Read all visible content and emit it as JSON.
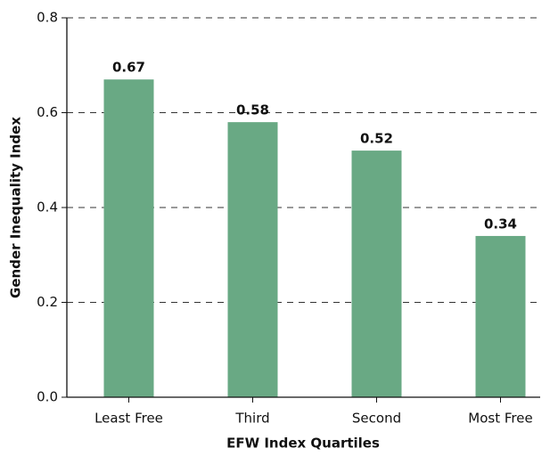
{
  "chart_data": {
    "type": "bar",
    "x_label": "EFW Index Quartiles",
    "y_label": "Gender Inequality Index",
    "categories": [
      "Least Free",
      "Third",
      "Second",
      "Most Free"
    ],
    "values": [
      0.67,
      0.58,
      0.52,
      0.34
    ],
    "color": "#69a984",
    "ylim": [
      0,
      0.8
    ],
    "yticks": [
      {
        "value": 0,
        "label": "0.0"
      },
      0.2,
      0.4,
      0.6,
      0.8
    ],
    "grid": true
  }
}
